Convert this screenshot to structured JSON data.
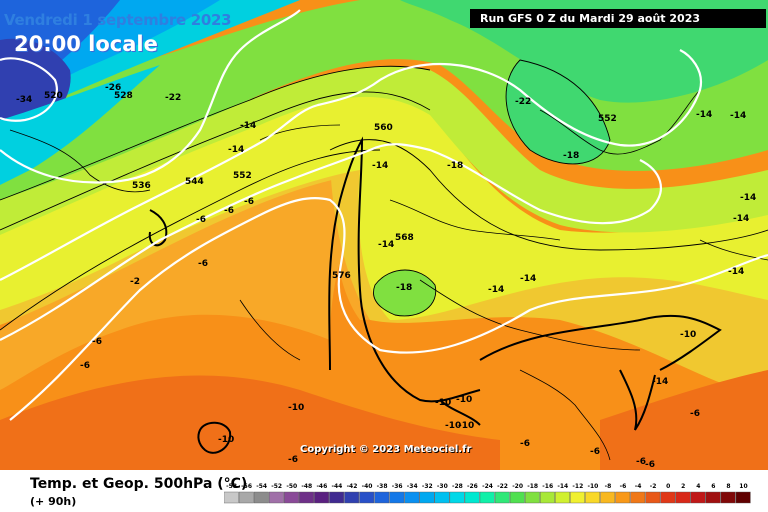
{
  "header": {
    "date": "Vendredi 1 septembre 2023",
    "time": "20:00 locale",
    "run": "Run GFS 0 Z du Mardi 29 août 2023"
  },
  "footer": {
    "title": "Temp. et Geop. 500hPa (°C)",
    "lead": "(+ 90h)",
    "copyright": "Copyright © 2023 Meteociel.fr"
  },
  "temperature_labels": [
    "-34",
    "-26",
    "-22",
    "-14",
    "-14",
    "-22",
    "-18",
    "-14",
    "-14",
    "-14",
    "-14",
    "-14",
    "-6",
    "-6",
    "-6",
    "-6",
    "-2",
    "-6",
    "-6",
    "-14",
    "-18",
    "-14",
    "-14",
    "-10",
    "-14",
    "-10",
    "-10",
    "-10",
    "-10",
    "-10",
    "-6",
    "-6",
    "-6",
    "-6",
    "-6",
    "-10",
    "-6",
    "-18",
    "-14"
  ],
  "geopotential_labels": [
    "520",
    "528",
    "536",
    "544",
    "552",
    "560",
    "552",
    "568",
    "576"
  ],
  "legend": {
    "ticks": [
      "-58",
      "-56",
      "-54",
      "-52",
      "-50",
      "-48",
      "-46",
      "-44",
      "-42",
      "-40",
      "-38",
      "-36",
      "-34",
      "-32",
      "-30",
      "-28",
      "-26",
      "-24",
      "-22",
      "-20",
      "-18",
      "-16",
      "-14",
      "-12",
      "-10",
      "-8",
      "-6",
      "-4",
      "-2",
      "0",
      "2",
      "4",
      "6",
      "8",
      "10"
    ],
    "colors": [
      "#c8c8c8",
      "#a8a8a8",
      "#8c8c8c",
      "#a070a8",
      "#8a4a98",
      "#6e3088",
      "#5a2080",
      "#402a90",
      "#3040b0",
      "#2850c8",
      "#1e64dc",
      "#1478e8",
      "#0a90f0",
      "#00a8f0",
      "#00c0f0",
      "#00d8e8",
      "#00e8d0",
      "#10f0a8",
      "#30e878",
      "#50e050",
      "#80e040",
      "#a8e838",
      "#d0f030",
      "#f0f030",
      "#f8d828",
      "#f8b820",
      "#f89818",
      "#f07818",
      "#e85818",
      "#e03818",
      "#d82818",
      "#c01818",
      "#a01010",
      "#800808",
      "#600000"
    ]
  }
}
